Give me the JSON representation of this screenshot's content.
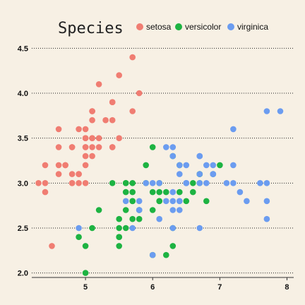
{
  "chart_data": {
    "type": "scatter",
    "title": "",
    "xlabel": "",
    "ylabel": "",
    "xlim": [
      4.2,
      8.1
    ],
    "ylim": [
      1.95,
      4.55
    ],
    "xticks": [
      5,
      6,
      7,
      8
    ],
    "yticks": [
      2.0,
      2.5,
      3.0,
      3.5,
      4.0,
      4.5
    ],
    "ytick_labels": [
      "2.0",
      "2.5",
      "3.0",
      "3.5",
      "4.0",
      "4.5"
    ],
    "grid": "horizontal dotted",
    "legend": {
      "title": "Species",
      "placement": "top",
      "entries": [
        "setosa",
        "versicolor",
        "virginica"
      ]
    },
    "series": [
      {
        "name": "setosa",
        "color": "#f07d72",
        "points": [
          [
            5.1,
            3.5
          ],
          [
            4.9,
            3.0
          ],
          [
            4.7,
            3.2
          ],
          [
            4.6,
            3.1
          ],
          [
            5.0,
            3.6
          ],
          [
            5.4,
            3.9
          ],
          [
            4.6,
            3.4
          ],
          [
            5.0,
            3.4
          ],
          [
            4.4,
            2.9
          ],
          [
            4.9,
            3.1
          ],
          [
            5.4,
            3.7
          ],
          [
            4.8,
            3.4
          ],
          [
            4.8,
            3.0
          ],
          [
            4.3,
            3.0
          ],
          [
            5.8,
            4.0
          ],
          [
            5.7,
            4.4
          ],
          [
            5.4,
            3.9
          ],
          [
            5.1,
            3.5
          ],
          [
            5.7,
            3.8
          ],
          [
            5.1,
            3.8
          ],
          [
            5.4,
            3.4
          ],
          [
            5.1,
            3.7
          ],
          [
            4.6,
            3.6
          ],
          [
            5.1,
            3.3
          ],
          [
            4.8,
            3.4
          ],
          [
            5.0,
            3.0
          ],
          [
            5.0,
            3.4
          ],
          [
            5.2,
            3.5
          ],
          [
            5.2,
            3.4
          ],
          [
            4.7,
            3.2
          ],
          [
            4.8,
            3.1
          ],
          [
            5.4,
            3.4
          ],
          [
            5.2,
            4.1
          ],
          [
            5.5,
            4.2
          ],
          [
            4.9,
            3.1
          ],
          [
            5.0,
            3.2
          ],
          [
            5.5,
            3.5
          ],
          [
            4.9,
            3.6
          ],
          [
            4.4,
            3.0
          ],
          [
            5.1,
            3.4
          ],
          [
            5.0,
            3.5
          ],
          [
            4.5,
            2.3
          ],
          [
            4.4,
            3.2
          ],
          [
            5.0,
            3.5
          ],
          [
            5.1,
            3.8
          ],
          [
            4.8,
            3.0
          ],
          [
            5.1,
            3.8
          ],
          [
            4.6,
            3.2
          ],
          [
            5.3,
            3.7
          ],
          [
            5.0,
            3.3
          ]
        ]
      },
      {
        "name": "versicolor",
        "color": "#1db342",
        "points": [
          [
            7.0,
            3.2
          ],
          [
            6.4,
            3.2
          ],
          [
            6.9,
            3.1
          ],
          [
            5.5,
            2.3
          ],
          [
            6.5,
            2.8
          ],
          [
            5.7,
            2.8
          ],
          [
            6.3,
            3.3
          ],
          [
            4.9,
            2.4
          ],
          [
            6.6,
            2.9
          ],
          [
            5.2,
            2.7
          ],
          [
            5.0,
            2.0
          ],
          [
            5.9,
            3.0
          ],
          [
            6.0,
            2.2
          ],
          [
            6.1,
            2.9
          ],
          [
            5.6,
            2.9
          ],
          [
            6.7,
            3.1
          ],
          [
            5.6,
            3.0
          ],
          [
            5.8,
            2.7
          ],
          [
            6.2,
            2.2
          ],
          [
            5.6,
            2.5
          ],
          [
            5.9,
            3.2
          ],
          [
            6.1,
            2.8
          ],
          [
            6.3,
            2.5
          ],
          [
            6.1,
            2.8
          ],
          [
            6.4,
            2.9
          ],
          [
            6.6,
            3.0
          ],
          [
            6.8,
            2.8
          ],
          [
            6.7,
            3.0
          ],
          [
            6.0,
            2.9
          ],
          [
            5.7,
            2.6
          ],
          [
            5.5,
            2.4
          ],
          [
            5.5,
            2.4
          ],
          [
            5.8,
            2.7
          ],
          [
            6.0,
            2.7
          ],
          [
            5.4,
            3.0
          ],
          [
            6.0,
            3.4
          ],
          [
            6.7,
            3.1
          ],
          [
            6.3,
            2.3
          ],
          [
            5.6,
            3.0
          ],
          [
            5.5,
            2.5
          ],
          [
            5.5,
            2.6
          ],
          [
            6.1,
            3.0
          ],
          [
            5.8,
            2.6
          ],
          [
            5.0,
            2.3
          ],
          [
            5.6,
            2.7
          ],
          [
            5.7,
            3.0
          ],
          [
            5.7,
            2.9
          ],
          [
            6.2,
            2.9
          ],
          [
            5.1,
            2.5
          ],
          [
            5.7,
            2.8
          ]
        ]
      },
      {
        "name": "virginica",
        "color": "#6b9cf0",
        "points": [
          [
            6.3,
            3.3
          ],
          [
            5.8,
            2.7
          ],
          [
            7.1,
            3.0
          ],
          [
            6.3,
            2.9
          ],
          [
            6.5,
            3.0
          ],
          [
            7.6,
            3.0
          ],
          [
            4.9,
            2.5
          ],
          [
            7.3,
            2.9
          ],
          [
            6.7,
            2.5
          ],
          [
            7.2,
            3.6
          ],
          [
            6.5,
            3.2
          ],
          [
            6.4,
            2.7
          ],
          [
            6.8,
            3.0
          ],
          [
            5.7,
            2.5
          ],
          [
            5.8,
            2.8
          ],
          [
            6.4,
            3.2
          ],
          [
            6.5,
            3.0
          ],
          [
            7.7,
            3.8
          ],
          [
            7.7,
            2.6
          ],
          [
            6.0,
            2.2
          ],
          [
            6.9,
            3.2
          ],
          [
            5.6,
            2.8
          ],
          [
            7.7,
            2.8
          ],
          [
            6.3,
            2.7
          ],
          [
            6.7,
            3.3
          ],
          [
            7.2,
            3.2
          ],
          [
            6.2,
            2.8
          ],
          [
            6.1,
            3.0
          ],
          [
            6.4,
            2.8
          ],
          [
            7.2,
            3.0
          ],
          [
            7.4,
            2.8
          ],
          [
            7.9,
            3.8
          ],
          [
            6.4,
            2.8
          ],
          [
            6.3,
            2.8
          ],
          [
            6.1,
            2.6
          ],
          [
            7.7,
            3.0
          ],
          [
            6.3,
            3.4
          ],
          [
            6.4,
            3.1
          ],
          [
            6.0,
            3.0
          ],
          [
            6.9,
            3.1
          ],
          [
            6.7,
            3.1
          ],
          [
            6.9,
            3.1
          ],
          [
            5.8,
            2.7
          ],
          [
            6.8,
            3.2
          ],
          [
            6.7,
            3.3
          ],
          [
            6.7,
            3.0
          ],
          [
            6.3,
            2.5
          ],
          [
            6.5,
            3.0
          ],
          [
            6.2,
            3.4
          ],
          [
            5.9,
            3.0
          ]
        ]
      }
    ]
  }
}
